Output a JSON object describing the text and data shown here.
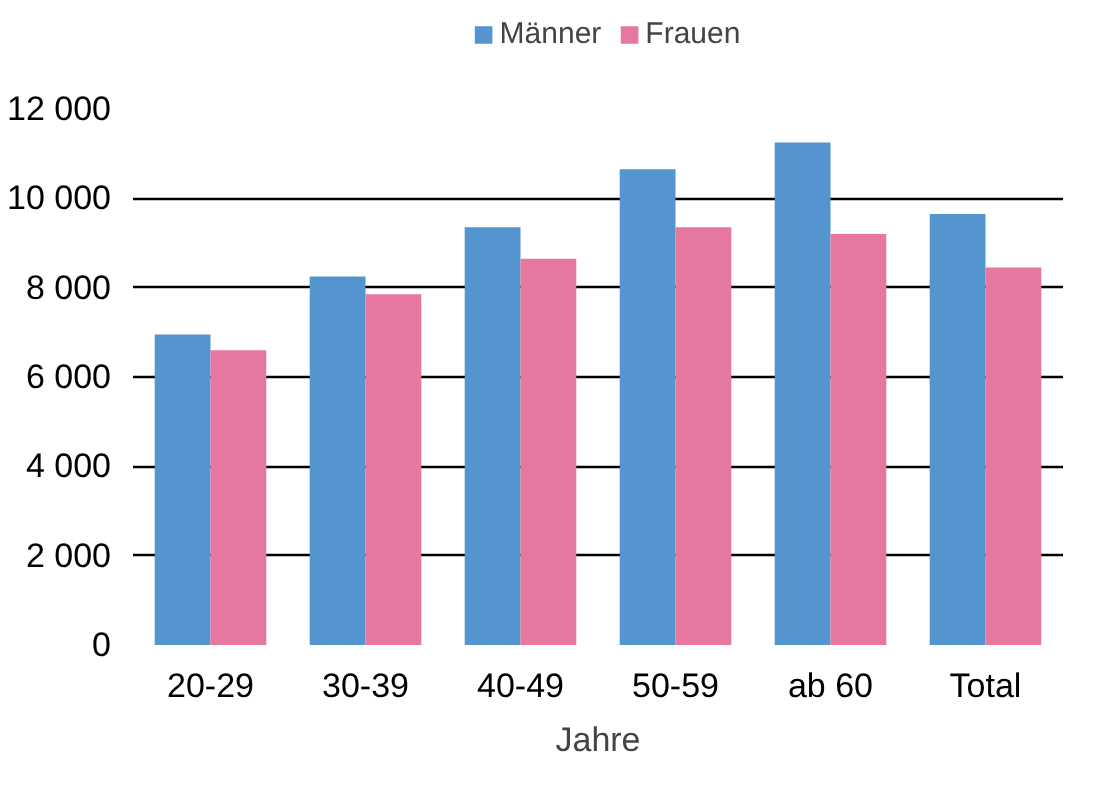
{
  "chart_data": {
    "type": "bar",
    "xlabel": "Jahre",
    "categories": [
      "20-29",
      "30-39",
      "40-49",
      "50-59",
      "ab 60",
      "Total"
    ],
    "series": [
      {
        "name": "Männer",
        "color": "#5495d0",
        "values": [
          6950,
          8250,
          9350,
          10650,
          11250,
          9650
        ]
      },
      {
        "name": "Frauen",
        "color": "#e677a1",
        "values": [
          6600,
          7850,
          8650,
          9350,
          9200,
          8450
        ]
      }
    ],
    "ylim": [
      0,
      12000
    ],
    "yticks": [
      {
        "value": 0,
        "label": "0"
      },
      {
        "value": 2000,
        "label": "2 000"
      },
      {
        "value": 4000,
        "label": "4 000"
      },
      {
        "value": 6000,
        "label": "6 000"
      },
      {
        "value": 8000,
        "label": "8 000"
      },
      {
        "value": 10000,
        "label": "10 000"
      },
      {
        "value": 12000,
        "label": "12 000"
      }
    ],
    "grid": "y",
    "legend": "top"
  }
}
